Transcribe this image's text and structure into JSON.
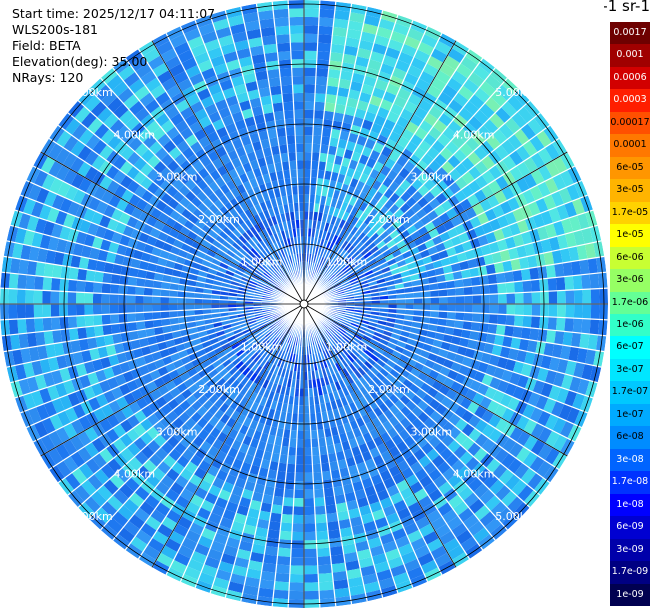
{
  "header": {
    "start_time": "Start time: 2025/12/17 04:11:07",
    "instrument": "WLS200s-181",
    "field": "Field: BETA",
    "elevation": "Elevation(deg): 35.00",
    "nrays": "NRays: 120"
  },
  "colorbar": {
    "title": "m-1 sr-1",
    "labels": [
      "0.0017",
      "0.001",
      "0.0006",
      "0.0003",
      "0.00017",
      "0.0001",
      "6e-05",
      "3e-05",
      "1.7e-05",
      "1e-05",
      "6e-06",
      "3e-06",
      "1.7e-06",
      "1e-06",
      "6e-07",
      "3e-07",
      "1.7e-07",
      "1e-07",
      "6e-08",
      "3e-08",
      "1.7e-08",
      "1e-08",
      "6e-09",
      "3e-09",
      "1.7e-09",
      "1e-09"
    ],
    "colors": [
      "#6e0000",
      "#a00000",
      "#d20000",
      "#ff1e00",
      "#ff5000",
      "#ff7800",
      "#ff9600",
      "#ffb400",
      "#ffd200",
      "#ffff00",
      "#c8ff32",
      "#96ff64",
      "#64ff96",
      "#32ffc8",
      "#00ffff",
      "#00e6ff",
      "#00c8ff",
      "#00aaff",
      "#008cff",
      "#0064ff",
      "#0032ff",
      "#0000ff",
      "#0000d2",
      "#0000aa",
      "#000082",
      "#000050"
    ]
  },
  "chart_data": {
    "type": "heatmap",
    "subtype": "polar PPI scan",
    "field": "BETA",
    "elevation_deg": 35.0,
    "n_rays": 120,
    "range_ring_labels": [
      "1.00km",
      "2.00km",
      "3.00km",
      "4.00km",
      "5.00km"
    ],
    "range_rings_km": [
      1,
      2,
      3,
      4,
      5
    ],
    "max_range_km": 5.0,
    "spokes_deg": [
      0,
      30,
      60,
      90,
      120,
      150,
      180,
      210,
      240,
      270,
      300,
      330
    ],
    "value_scale": "log",
    "value_range": [
      1e-09,
      0.0017
    ],
    "pattern": {
      "near_range_dominant": "1e-08",
      "mid_range_dominant": "6e-08",
      "far_range_dominant": "1e-07",
      "northeast_far_range": "3e-07 to 1.7e-06"
    }
  }
}
